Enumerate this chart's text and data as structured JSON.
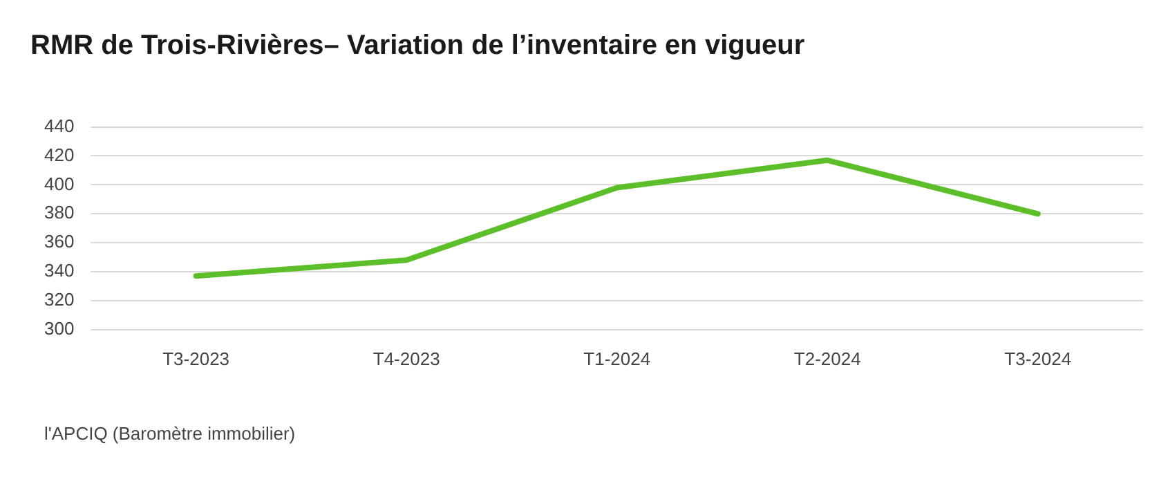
{
  "chart_data": {
    "type": "line",
    "title": "RMR de Trois-Rivières– Variation de l’inventaire en vigueur",
    "categories": [
      "T3-2023",
      "T4-2023",
      "T1-2024",
      "T2-2024",
      "T3-2024"
    ],
    "series": [
      {
        "color": "#5cbf2a",
        "values": [
          337,
          348,
          398,
          417,
          380
        ]
      }
    ],
    "ylim": [
      300,
      440
    ],
    "yticks": [
      300,
      320,
      340,
      360,
      380,
      400,
      420,
      440
    ],
    "grid": "y",
    "legend": false,
    "marker": "none",
    "line_style": "solid",
    "annotations": [
      "l'APCIQ (Baromètre immobilier)"
    ]
  }
}
